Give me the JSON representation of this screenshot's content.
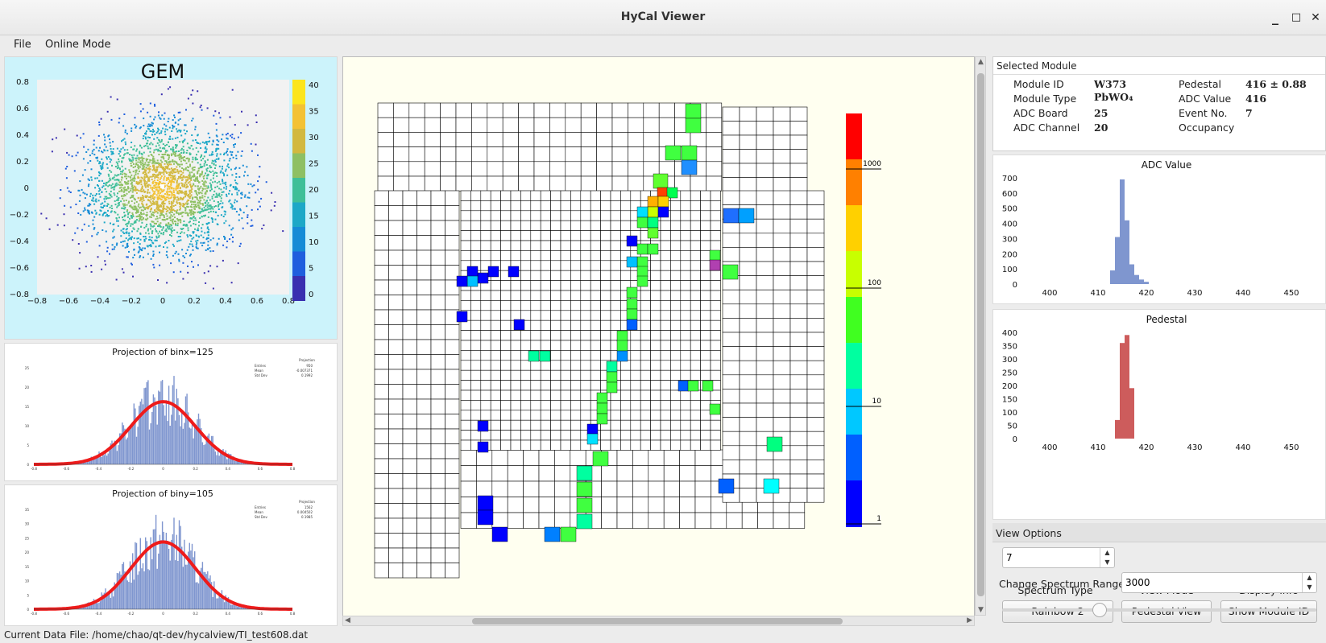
{
  "window": {
    "title": "HyCal Viewer",
    "minimize": "_",
    "maximize": "□",
    "close": "✕"
  },
  "menu": {
    "file": "File",
    "online": "Online Mode"
  },
  "gem": {
    "title": "GEM",
    "xticks": [
      "−0.8",
      "−0.6",
      "−0.4",
      "−0.2",
      "0",
      "0.2",
      "0.4",
      "0.6",
      "0.8"
    ],
    "yticks": [
      "0.8",
      "0.6",
      "0.4",
      "0.2",
      "0",
      "−0.2",
      "−0.4",
      "−0.6",
      "−0.8"
    ],
    "colorbar_ticks": [
      "40",
      "35",
      "30",
      "25",
      "20",
      "15",
      "10",
      "5",
      "0"
    ],
    "colorbar_colors": [
      "#fce51d",
      "#f3c234",
      "#d2b940",
      "#8ec063",
      "#3fbf98",
      "#1ca8c7",
      "#158bd6",
      "#1f5ede",
      "#3a2fb0"
    ]
  },
  "proj_x": {
    "title": "Projection of binx=125",
    "stats_title": "Projection",
    "stats": [
      [
        "Entries",
        "950"
      ],
      [
        "Mean",
        "-0.007371"
      ],
      [
        "Std Dev",
        "0.1992"
      ]
    ],
    "yticks": [
      "25",
      "20",
      "15",
      "10",
      "5",
      "0"
    ],
    "xticks": [
      "-0.8",
      "-0.6",
      "-0.4",
      "-0.2",
      "0",
      "0.2",
      "0.4",
      "0.6",
      "0.8"
    ],
    "bar_color": "#7f96cf",
    "fit_color": "#ee1b1b"
  },
  "proj_y": {
    "title": "Projection of biny=105",
    "stats_title": "Projection",
    "stats": [
      [
        "Entries",
        "1562"
      ],
      [
        "Mean",
        "0.004502"
      ],
      [
        "Std Dev",
        "0.1985"
      ]
    ],
    "yticks": [
      "35",
      "30",
      "25",
      "20",
      "15",
      "10",
      "5",
      "0"
    ],
    "xticks": [
      "-0.8",
      "-0.6",
      "-0.4",
      "-0.2",
      "0",
      "0.2",
      "0.4",
      "0.6",
      "0.8"
    ],
    "bar_color": "#7f96cf",
    "fit_color": "#ee1b1b"
  },
  "hycal": {
    "scale_labels": [
      "1000",
      "100",
      "10",
      "1"
    ],
    "scale_colors": [
      "#ff0000",
      "#ff8000",
      "#ffd000",
      "#c8ff00",
      "#40ff20",
      "#00ffa0",
      "#00c8ff",
      "#0060ff",
      "#0000ff"
    ],
    "empty_cell_color": "#ffffff",
    "grid_color": "#000000"
  },
  "selected_module": {
    "header": "Selected Module",
    "fields": [
      {
        "label": "Module ID",
        "value": "W373"
      },
      {
        "label": "Module Type",
        "value": "PbWO₄"
      },
      {
        "label": "ADC Board",
        "value": "25"
      },
      {
        "label": "ADC Channel",
        "value": "20"
      },
      {
        "label": "Pedestal",
        "value": "416 ± 0.88"
      },
      {
        "label": "ADC Value",
        "value": "416"
      },
      {
        "label": "Event No.",
        "value": "7"
      },
      {
        "label": "Occupancy",
        "value": ""
      }
    ]
  },
  "adc_hist": {
    "title": "ADC Value",
    "yticks": [
      "700",
      "600",
      "500",
      "400",
      "300",
      "200",
      "100",
      "0"
    ],
    "xticks": [
      "400",
      "410",
      "420",
      "430",
      "440",
      "450"
    ],
    "color": "#7f96cf",
    "chart_data": {
      "type": "bar",
      "x": [
        413,
        414,
        415,
        416,
        417,
        418,
        419,
        420
      ],
      "values": [
        90,
        310,
        690,
        420,
        130,
        60,
        30,
        15
      ],
      "ylim": [
        0,
        700
      ]
    }
  },
  "ped_hist": {
    "title": "Pedestal",
    "yticks": [
      "400",
      "350",
      "300",
      "250",
      "200",
      "150",
      "100",
      "50",
      "0"
    ],
    "xticks": [
      "400",
      "410",
      "420",
      "430",
      "440",
      "450"
    ],
    "color": "#cd5c5c",
    "chart_data": {
      "type": "bar",
      "x": [
        414,
        415,
        416,
        417
      ],
      "values": [
        70,
        360,
        390,
        190
      ],
      "ylim": [
        0,
        400
      ]
    }
  },
  "view_options": {
    "header": "View Options",
    "event_value": "7",
    "labels": {
      "spectrum_type": "Spectrum Type",
      "view_mode": "View Mode",
      "display_info": "Display Info",
      "change_range": "Change Spectrum Range"
    },
    "buttons": {
      "spectrum": "Rainbow 2",
      "view": "Pedestal View",
      "info": "Show Module ID"
    },
    "range_value": "3000"
  },
  "status": {
    "text": "Current Data File: /home/chao/qt-dev/hycalview/TI_test608.dat"
  }
}
